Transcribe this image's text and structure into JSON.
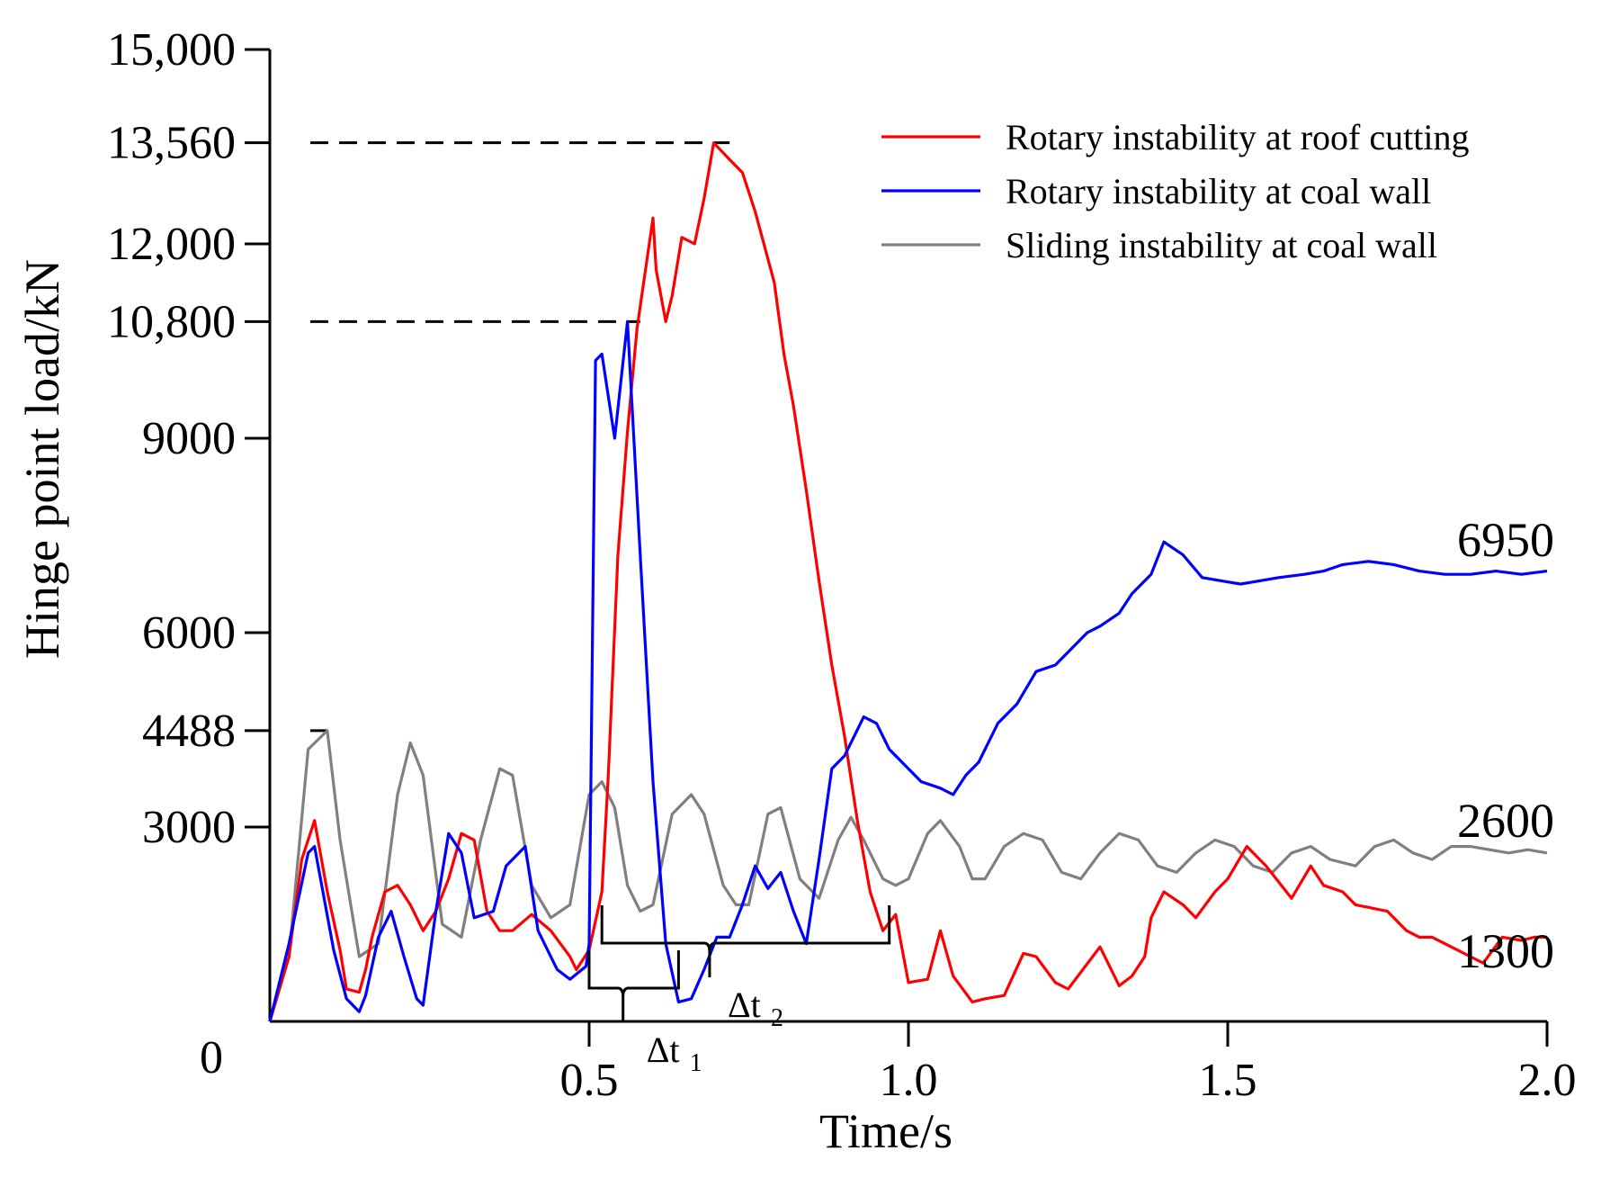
{
  "chart_data": {
    "type": "line",
    "title": "",
    "xlabel": "Time/s",
    "ylabel": "Hinge point load/kN",
    "xlim": [
      0,
      2.0
    ],
    "ylim": [
      0,
      15000
    ],
    "x_ticks": [
      0.5,
      1.0,
      1.5,
      2.0
    ],
    "x_tick_labels": [
      "0.5",
      "1.0",
      "1.5",
      "2.0"
    ],
    "y_ticks": [
      3000,
      4488,
      6000,
      9000,
      10800,
      12000,
      13560,
      15000
    ],
    "y_tick_labels": [
      "3000",
      "4488",
      "6000",
      "9000",
      "10,800",
      "12,000",
      "13,560",
      "15,000"
    ],
    "origin_label": "0",
    "legend_position": "top-right",
    "series": [
      {
        "name": "Rotary instability at roof cutting",
        "color": "#ff0000",
        "x": [
          0,
          0.03,
          0.05,
          0.07,
          0.09,
          0.11,
          0.12,
          0.14,
          0.15,
          0.16,
          0.18,
          0.2,
          0.22,
          0.24,
          0.26,
          0.28,
          0.3,
          0.32,
          0.34,
          0.36,
          0.38,
          0.41,
          0.44,
          0.47,
          0.48,
          0.5,
          0.52,
          0.53,
          0.545,
          0.56,
          0.575,
          0.6,
          0.605,
          0.62,
          0.63,
          0.645,
          0.665,
          0.68,
          0.695,
          0.72,
          0.74,
          0.76,
          0.79,
          0.805,
          0.82,
          0.84,
          0.86,
          0.88,
          0.9,
          0.92,
          0.94,
          0.96,
          0.98,
          1.0,
          1.03,
          1.05,
          1.07,
          1.1,
          1.12,
          1.15,
          1.18,
          1.2,
          1.23,
          1.25,
          1.3,
          1.33,
          1.35,
          1.37,
          1.38,
          1.4,
          1.43,
          1.45,
          1.48,
          1.5,
          1.53,
          1.56,
          1.6,
          1.63,
          1.65,
          1.68,
          1.7,
          1.75,
          1.78,
          1.8,
          1.82,
          1.85,
          1.88,
          1.9,
          1.93,
          1.96,
          1.98,
          2.0
        ],
        "values": [
          0,
          1000,
          2500,
          3100,
          2000,
          1100,
          500,
          450,
          800,
          1300,
          2000,
          2100,
          1800,
          1400,
          1700,
          2200,
          2900,
          2800,
          1700,
          1400,
          1400,
          1650,
          1400,
          1000,
          800,
          1100,
          2000,
          3800,
          7200,
          9100,
          10700,
          12400,
          11600,
          10800,
          11200,
          12100,
          12000,
          12700,
          13560,
          13300,
          13100,
          12500,
          11400,
          10300,
          9500,
          8200,
          6800,
          5500,
          4400,
          3100,
          2000,
          1400,
          1650,
          600,
          650,
          1400,
          700,
          300,
          350,
          400,
          1050,
          1000,
          600,
          500,
          1150,
          550,
          700,
          1000,
          1600,
          2000,
          1800,
          1600,
          2000,
          2200,
          2700,
          2400,
          1900,
          2400,
          2100,
          2000,
          1800,
          1700,
          1400,
          1300,
          1300,
          1150,
          1000,
          900,
          1300,
          1250,
          1300,
          1300
        ],
        "values_note": "interleaved"
      },
      {
        "name": "Rotary instability at coal wall",
        "color": "#0000ff",
        "x": [
          0,
          0.03,
          0.06,
          0.07,
          0.1,
          0.12,
          0.14,
          0.15,
          0.17,
          0.19,
          0.21,
          0.23,
          0.24,
          0.26,
          0.28,
          0.3,
          0.32,
          0.35,
          0.37,
          0.4,
          0.42,
          0.45,
          0.47,
          0.495,
          0.5,
          0.51,
          0.52,
          0.54,
          0.56,
          0.58,
          0.6,
          0.62,
          0.64,
          0.66,
          0.68,
          0.7,
          0.72,
          0.74,
          0.76,
          0.78,
          0.8,
          0.82,
          0.84,
          0.86,
          0.88,
          0.9,
          0.93,
          0.95,
          0.97,
          1.0,
          1.02,
          1.05,
          1.07,
          1.09,
          1.11,
          1.14,
          1.17,
          1.2,
          1.23,
          1.25,
          1.28,
          1.3,
          1.33,
          1.35,
          1.38,
          1.4,
          1.43,
          1.46,
          1.49,
          1.52,
          1.55,
          1.58,
          1.62,
          1.65,
          1.68,
          1.72,
          1.76,
          1.8,
          1.84,
          1.88,
          1.92,
          1.96,
          2.0
        ],
        "values": [
          0,
          1200,
          2600,
          2700,
          1100,
          350,
          150,
          400,
          1300,
          1700,
          1000,
          350,
          250,
          1700,
          2900,
          2600,
          1600,
          1700,
          2400,
          2700,
          1400,
          800,
          650,
          850,
          1200,
          10200,
          10300,
          9000,
          10800,
          7200,
          3700,
          1200,
          300,
          350,
          800,
          1300,
          1300,
          1800,
          2400,
          2050,
          2300,
          1700,
          1200,
          2500,
          3900,
          4100,
          4700,
          4600,
          4200,
          3900,
          3700,
          3600,
          3500,
          3800,
          4000,
          4600,
          4900,
          5400,
          5500,
          5700,
          6000,
          6100,
          6300,
          6600,
          6900,
          7400,
          7200,
          6850,
          6800,
          6750,
          6800,
          6850,
          6900,
          6950,
          7050,
          7100,
          7050,
          6950,
          6900,
          6900,
          6950,
          6900,
          6950
        ]
      },
      {
        "name": "Sliding instability at coal wall",
        "color": "#808080",
        "x": [
          0,
          0.03,
          0.06,
          0.09,
          0.11,
          0.14,
          0.17,
          0.2,
          0.22,
          0.24,
          0.27,
          0.3,
          0.33,
          0.36,
          0.38,
          0.41,
          0.44,
          0.47,
          0.5,
          0.52,
          0.54,
          0.56,
          0.58,
          0.6,
          0.63,
          0.66,
          0.68,
          0.71,
          0.73,
          0.75,
          0.78,
          0.8,
          0.83,
          0.86,
          0.89,
          0.91,
          0.93,
          0.96,
          0.98,
          1.0,
          1.03,
          1.05,
          1.08,
          1.1,
          1.12,
          1.15,
          1.18,
          1.21,
          1.24,
          1.27,
          1.3,
          1.33,
          1.36,
          1.39,
          1.42,
          1.45,
          1.48,
          1.51,
          1.54,
          1.57,
          1.6,
          1.63,
          1.66,
          1.7,
          1.73,
          1.76,
          1.79,
          1.82,
          1.85,
          1.88,
          1.91,
          1.94,
          1.97,
          2.0
        ],
        "values": [
          0,
          1000,
          4200,
          4488,
          2800,
          1000,
          1200,
          3500,
          4300,
          3800,
          1500,
          1300,
          2800,
          3900,
          3800,
          2100,
          1600,
          1800,
          3500,
          3700,
          3300,
          2100,
          1700,
          1800,
          3200,
          3500,
          3200,
          2100,
          1800,
          1800,
          3200,
          3300,
          2200,
          1900,
          2800,
          3150,
          2800,
          2200,
          2100,
          2200,
          2900,
          3100,
          2700,
          2200,
          2200,
          2700,
          2900,
          2800,
          2300,
          2200,
          2600,
          2900,
          2800,
          2400,
          2300,
          2600,
          2800,
          2700,
          2400,
          2300,
          2600,
          2700,
          2500,
          2400,
          2700,
          2800,
          2600,
          2500,
          2700,
          2700,
          2650,
          2600,
          2650,
          2600
        ]
      }
    ],
    "annotations": [
      {
        "text": "6950",
        "series": "Rotary instability at coal wall"
      },
      {
        "text": "2600",
        "series": "Sliding instability at coal wall"
      },
      {
        "text": "1300",
        "series": "Rotary instability at roof cutting"
      }
    ],
    "reference_lines": [
      {
        "y": 13560,
        "x_end": 0.72,
        "style": "dashed"
      },
      {
        "y": 10800,
        "x_end": 0.58,
        "style": "dashed"
      },
      {
        "y": 4488,
        "x_end": 0.09,
        "style": "dashed"
      }
    ],
    "intervals": [
      {
        "label": "Δt",
        "subscript": "1",
        "x_start": 0.5,
        "x_end": 0.64
      },
      {
        "label": "Δt",
        "subscript": "2",
        "x_start": 0.52,
        "x_end": 0.97
      }
    ]
  }
}
